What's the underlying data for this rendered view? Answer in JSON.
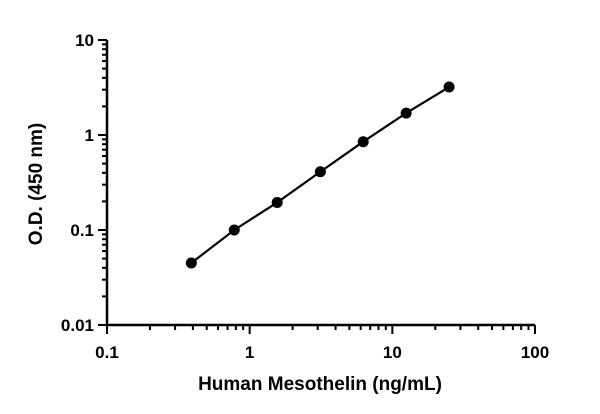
{
  "chart_data": {
    "type": "scatter",
    "title": "",
    "xlabel": "Human Mesothelin (ng/mL)",
    "ylabel": "O.D. (450 nm)",
    "x_scale": "log",
    "y_scale": "log",
    "xlim": [
      0.1,
      100
    ],
    "ylim": [
      0.01,
      10
    ],
    "x_ticks": [
      "0.1",
      "1",
      "10",
      "100"
    ],
    "y_ticks": [
      "0.01",
      "0.1",
      "1",
      "10"
    ],
    "grid": false,
    "legend": "none",
    "series": [
      {
        "x": [
          0.39,
          0.78,
          1.56,
          3.13,
          6.25,
          12.5,
          25
        ],
        "y": [
          0.045,
          0.1,
          0.195,
          0.41,
          0.85,
          1.7,
          3.2
        ],
        "fit_line": true,
        "color": "#000000"
      }
    ]
  }
}
